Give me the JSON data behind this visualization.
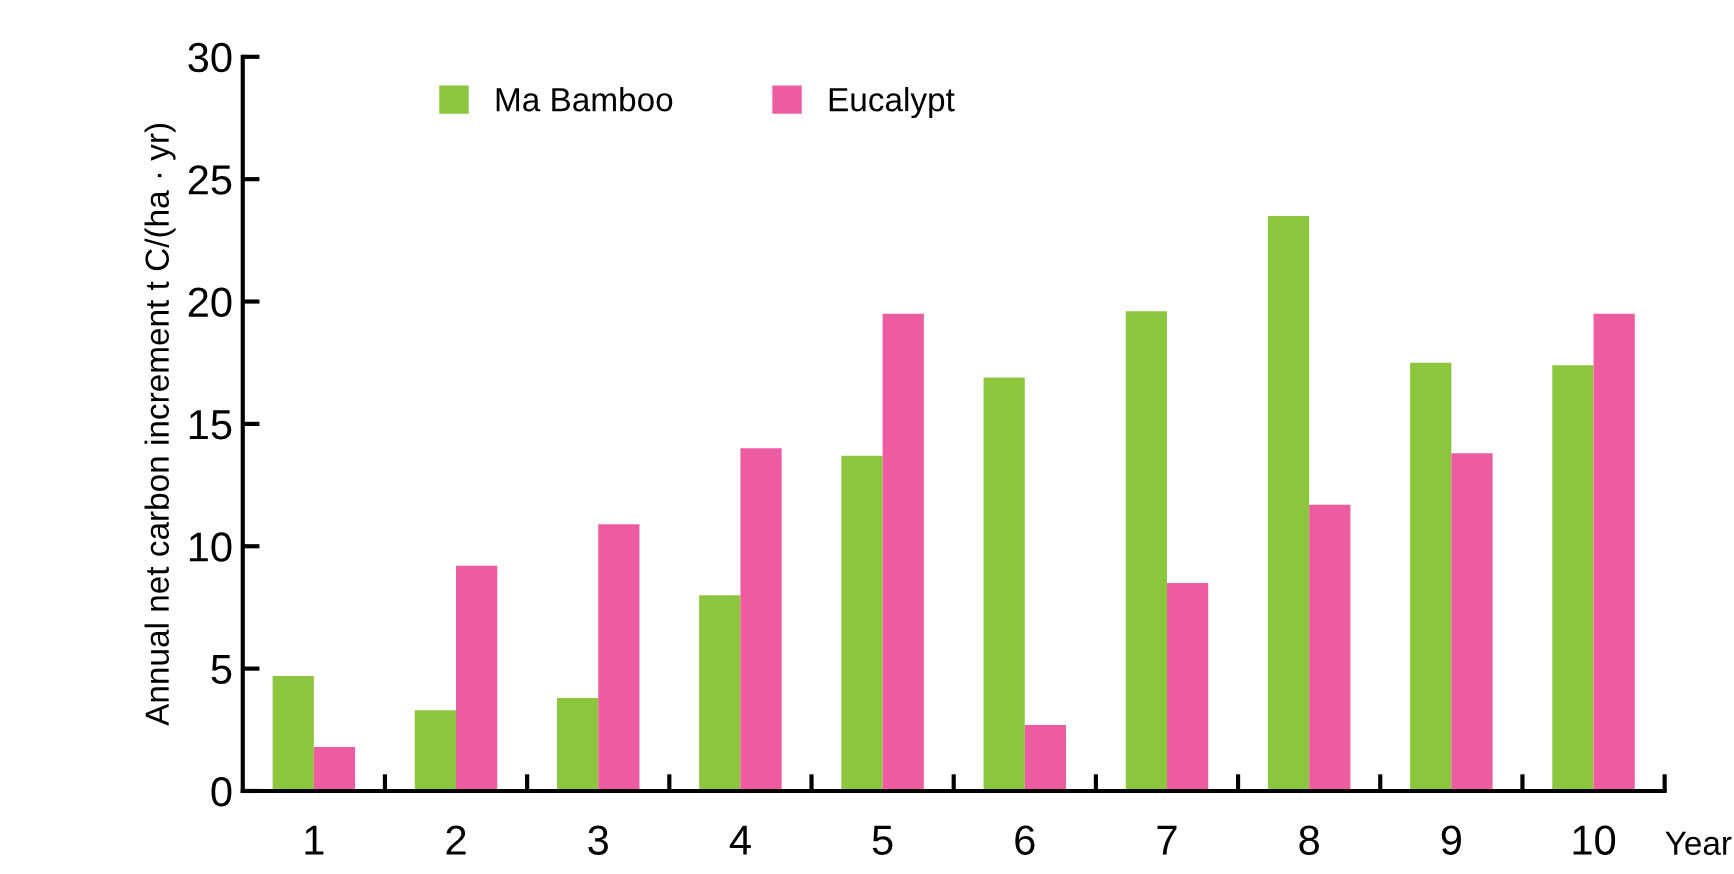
{
  "chart_data": {
    "type": "bar",
    "xlabel": "Year",
    "ylabel": "Annual net carbon increment t C/(ha · yr)",
    "categories": [
      "1",
      "2",
      "3",
      "4",
      "5",
      "6",
      "7",
      "8",
      "9",
      "10"
    ],
    "series": [
      {
        "name": "Ma Bamboo",
        "color": "#8cc63f",
        "values": [
          4.7,
          3.3,
          3.8,
          8.0,
          13.7,
          16.9,
          19.6,
          23.5,
          17.5,
          17.4
        ]
      },
      {
        "name": "Eucalypt",
        "color": "#ed5ca0",
        "values": [
          1.8,
          9.2,
          10.9,
          14.0,
          19.5,
          2.7,
          8.5,
          11.7,
          13.8,
          19.5
        ]
      }
    ],
    "ylim": [
      0,
      30
    ],
    "yticks": [
      0,
      5,
      10,
      15,
      20,
      25,
      30
    ],
    "grid": false,
    "legend": "top"
  }
}
